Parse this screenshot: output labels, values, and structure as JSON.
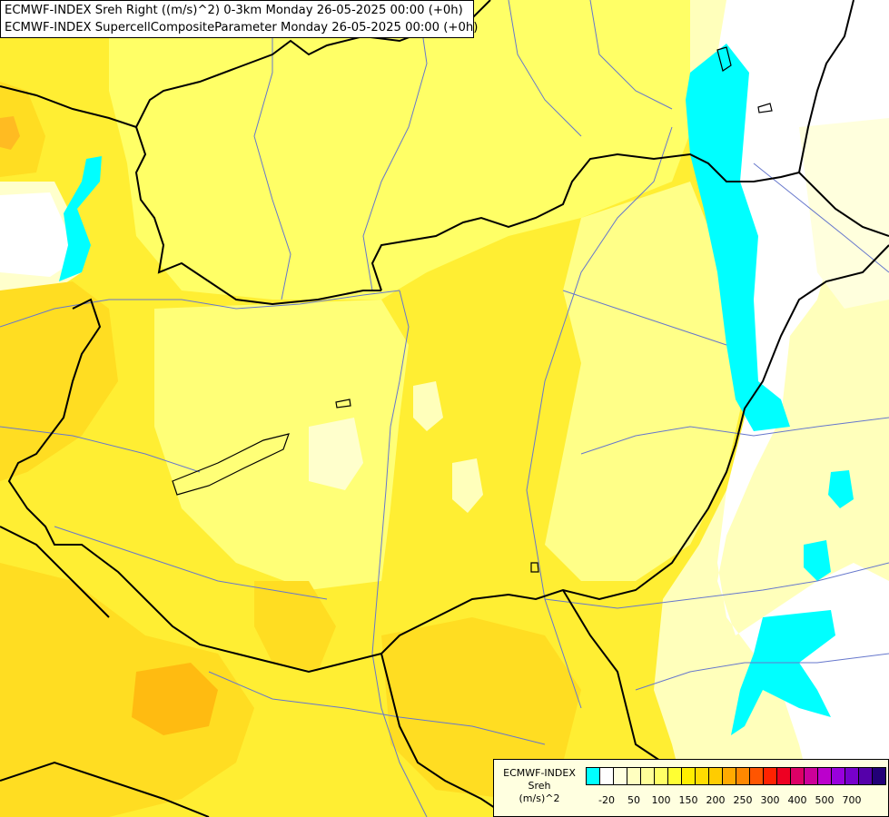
{
  "header": {
    "line1": "ECMWF-INDEX Sreh Right ((m/s)^2) 0-3km Monday 26-05-2025 00:00 (+0h)",
    "line2": "ECMWF-INDEX SupercellCompositeParameter Monday 26-05-2025 00:00 (+0h)"
  },
  "legend": {
    "title_line1": "ECMWF-INDEX",
    "title_line2": "Sreh",
    "title_line3": "(m/s)^2",
    "colors": [
      "#00ffff",
      "#ffffff",
      "#ffffe0",
      "#ffffc0",
      "#ffff99",
      "#ffff66",
      "#ffff33",
      "#ffee00",
      "#ffdd00",
      "#ffcc00",
      "#ffaa00",
      "#ff8800",
      "#ff5500",
      "#ff2200",
      "#ee0022",
      "#dd0066",
      "#cc0099",
      "#bb00cc",
      "#9900dd",
      "#7700cc",
      "#5500aa",
      "#220077"
    ],
    "ticks": [
      "-20",
      "50",
      "100",
      "150",
      "200",
      "250",
      "300",
      "400",
      "500",
      "700"
    ]
  },
  "map": {
    "field_colors": {
      "base": "#ffee33",
      "light": "#ffff77",
      "pale": "#ffffbb",
      "cream": "#ffffdd",
      "white": "#ffffff",
      "cyan": "#00ffff",
      "orange": "#ffcc22",
      "deep_orange": "#ffbb11"
    },
    "line_colors": {
      "border": "#000000",
      "river": "#6677cc"
    }
  }
}
